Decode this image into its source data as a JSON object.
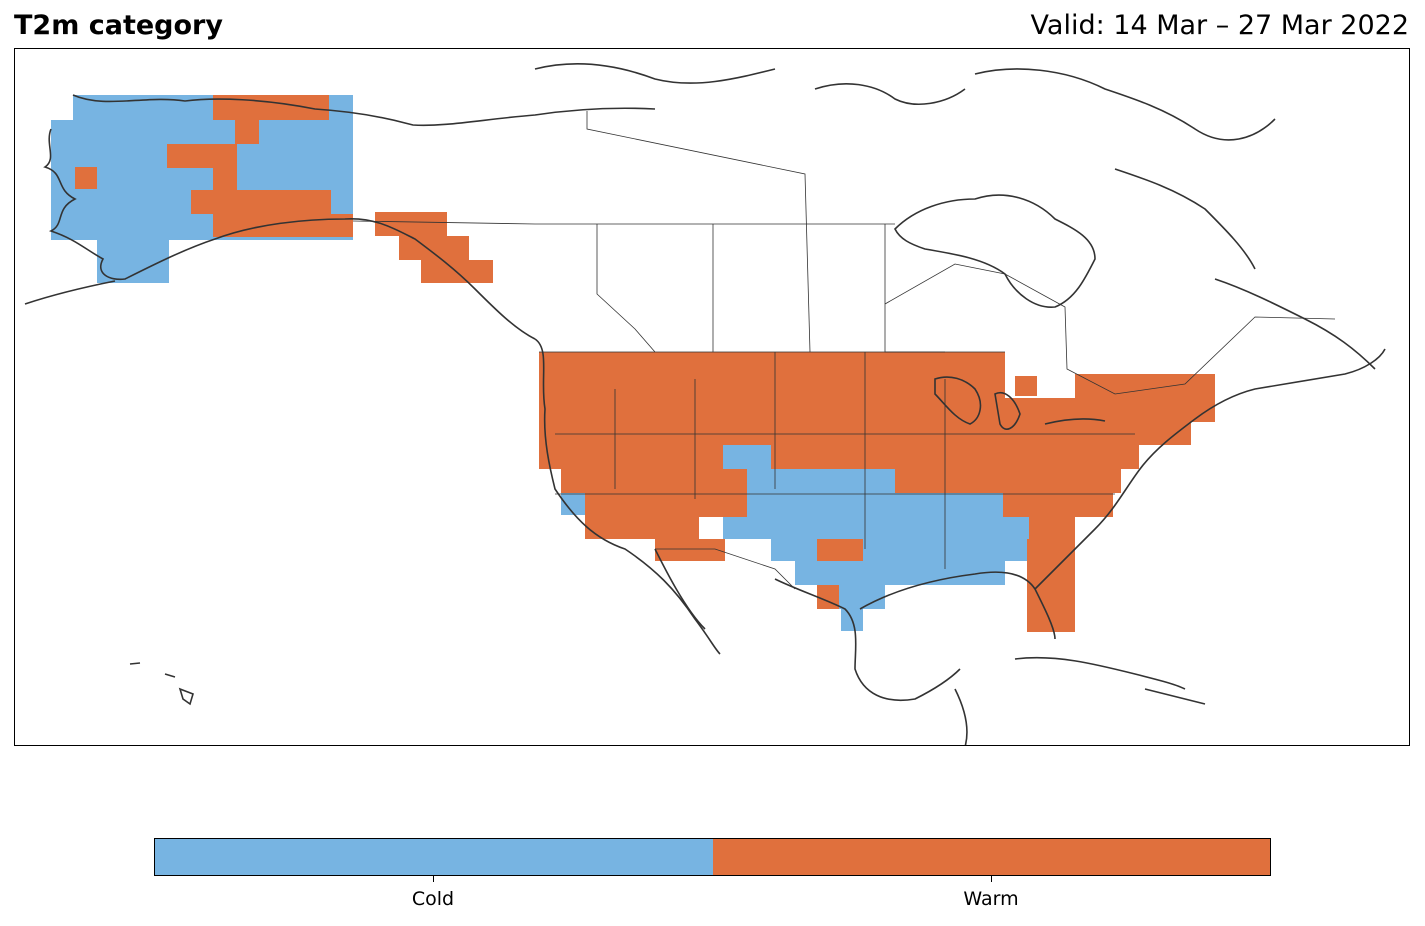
{
  "title": "T2m category",
  "valid_text": "Valid: 14 Mar – 27 Mar 2022",
  "colors": {
    "cold": "#77b4e2",
    "warm": "#e0703d",
    "coast": "#333333"
  },
  "colorbar": {
    "categories": [
      {
        "label": "Cold",
        "color": "#77b4e2"
      },
      {
        "label": "Warm",
        "color": "#e0703d"
      }
    ]
  },
  "map": {
    "region": "North America",
    "field": "2 m temperature category",
    "anomaly_regions": [
      {
        "name": "Alaska interior",
        "category": "Cold"
      },
      {
        "name": "Northern Alaska",
        "category": "Warm"
      },
      {
        "name": "Southern Alaska coast",
        "category": "Warm"
      },
      {
        "name": "Alaska panhandle",
        "category": "Warm"
      },
      {
        "name": "Western and northern US",
        "category": "Warm"
      },
      {
        "name": "Eastern US",
        "category": "Warm"
      },
      {
        "name": "Southern Plains and Gulf Coast",
        "category": "Cold"
      },
      {
        "name": "Florida",
        "category": "Warm"
      }
    ]
  }
}
